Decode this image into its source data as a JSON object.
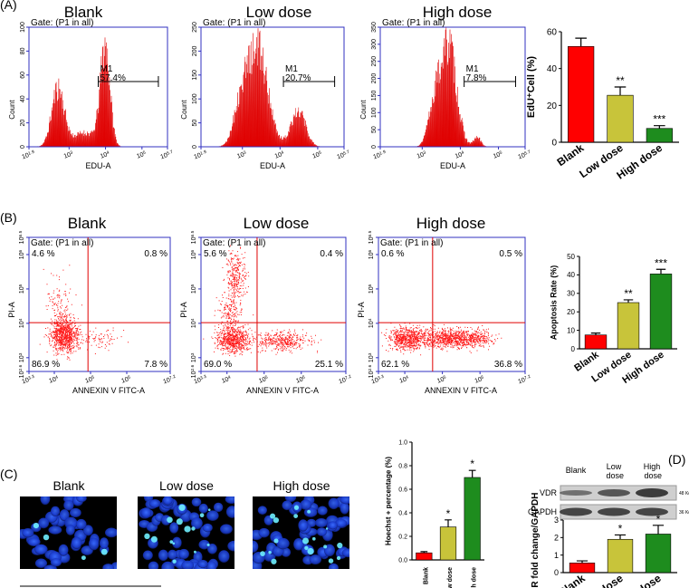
{
  "panel_labels": [
    "(A)",
    "(B)",
    "(C)",
    "(D)"
  ],
  "edu_histograms": [
    {
      "title": "Blank",
      "gate": "Gate: (P1 in all)",
      "ylabel": "Count",
      "xlabel": "EDU-A",
      "xscale": "log",
      "ylim": [
        0,
        100
      ],
      "yticks": [
        0,
        20,
        40,
        60,
        80,
        100
      ],
      "xlim": [
        79.43,
        501187
      ],
      "xticks": [
        {
          "value": 79.43,
          "label": "10^1.9"
        },
        {
          "value": 1000,
          "label": "10^3"
        },
        {
          "value": 10000,
          "label": "10^4"
        },
        {
          "value": 100000,
          "label": "10^5"
        },
        {
          "value": 501187,
          "label": "10^5.7"
        }
      ],
      "marker": "M1",
      "marker_range": [
        6310,
        281838
      ],
      "marker_percent": "57.4%"
    },
    {
      "title": "Low dose",
      "gate": "Gate: (P1 in all)",
      "ylabel": "Count",
      "xlabel": "EDU-A",
      "xscale": "log",
      "ylim": [
        0,
        250
      ],
      "yticks": [
        0,
        50,
        100,
        150,
        200,
        250
      ],
      "xlim": [
        79.43,
        501187
      ],
      "xticks": [
        {
          "value": 79.43,
          "label": "10^1.9"
        },
        {
          "value": 1000,
          "label": "10^3"
        },
        {
          "value": 10000,
          "label": "10^4"
        },
        {
          "value": 100000,
          "label": "10^5"
        },
        {
          "value": 501187,
          "label": "10^5.7"
        }
      ],
      "marker": "M1",
      "marker_range": [
        12300,
        281838
      ],
      "marker_percent": "20.7%"
    },
    {
      "title": "High dose",
      "gate": "Gate: (P1 in all)",
      "ylabel": "Count",
      "xlabel": "EDU-A",
      "xscale": "log",
      "ylim": [
        0,
        350
      ],
      "yticks": [
        0,
        50,
        100,
        150,
        200,
        250,
        300,
        350
      ],
      "xlim": [
        79.43,
        501187
      ],
      "xticks": [
        {
          "value": 79.43,
          "label": "10^1.9"
        },
        {
          "value": 1000,
          "label": "10^3"
        },
        {
          "value": 10000,
          "label": "10^4"
        },
        {
          "value": 100000,
          "label": "10^5"
        },
        {
          "value": 501187,
          "label": "10^5.7"
        }
      ],
      "marker": "M1",
      "marker_range": [
        12600,
        281838
      ],
      "marker_percent": "7.8%"
    }
  ],
  "apoptosis_scatter": [
    {
      "title": "Blank",
      "gate": "Gate: (P1 in all)",
      "xlabel": "ANNEXIN V FITC-A",
      "ylabel": "PI-A",
      "xscale": "log",
      "yscale": "log",
      "xlim": [
        1995,
        15848932
      ],
      "xticks": [
        {
          "value": 1995,
          "label": "10^3.3"
        },
        {
          "value": 10000,
          "label": "10^4"
        },
        {
          "value": 100000,
          "label": "10^5"
        },
        {
          "value": 1000000,
          "label": "10^6"
        },
        {
          "value": 15848932,
          "label": "10^7.2"
        }
      ],
      "ylim": [
        398,
        3162278
      ],
      "yticks": [
        {
          "value": 398,
          "label": "10^2.6"
        },
        {
          "value": 1000,
          "label": "10^3"
        },
        {
          "value": 10000,
          "label": "10^4"
        },
        {
          "value": 100000,
          "label": "10^5"
        },
        {
          "value": 1000000,
          "label": "10^6"
        },
        {
          "value": 3162278,
          "label": "10^6.5"
        }
      ],
      "quadrant_gate": {
        "x": 85000,
        "y": 10500
      },
      "quadrant_labels": [
        "4.6 %",
        "0.8 %",
        "86.9 %",
        "7.8 %"
      ]
    },
    {
      "title": "Low dose",
      "gate": "Gate: (P1 in all)",
      "xlabel": "ANNEXIN V FITC-A",
      "ylabel": "PI-A",
      "xscale": "log",
      "yscale": "log",
      "xlim": [
        1995,
        15848932
      ],
      "xticks": [
        {
          "value": 1995,
          "label": "10^3.3"
        },
        {
          "value": 10000,
          "label": "10^4"
        },
        {
          "value": 100000,
          "label": "10^5"
        },
        {
          "value": 1000000,
          "label": "10^6"
        },
        {
          "value": 15848932,
          "label": "10^7.2"
        }
      ],
      "ylim": [
        398,
        3162278
      ],
      "yticks": [
        {
          "value": 398,
          "label": "10^2.6"
        },
        {
          "value": 1000,
          "label": "10^3"
        },
        {
          "value": 10000,
          "label": "10^4"
        },
        {
          "value": 100000,
          "label": "10^5"
        },
        {
          "value": 1000000,
          "label": "10^6"
        },
        {
          "value": 3162278,
          "label": "10^6.5"
        }
      ],
      "quadrant_gate": {
        "x": 64600,
        "y": 10500
      },
      "quadrant_labels": [
        "5.6 %",
        "0.4 %",
        "69.0 %",
        "25.1 %"
      ]
    },
    {
      "title": "High dose",
      "gate": "Gate: (P1 in all)",
      "xlabel": "ANNEXIN V FITC-A",
      "ylabel": "PI-A",
      "xscale": "log",
      "yscale": "log",
      "xlim": [
        1995,
        15848932
      ],
      "xticks": [
        {
          "value": 1995,
          "label": "10^3.3"
        },
        {
          "value": 10000,
          "label": "10^4"
        },
        {
          "value": 100000,
          "label": "10^5"
        },
        {
          "value": 1000000,
          "label": "10^6"
        },
        {
          "value": 15848932,
          "label": "10^7.2"
        }
      ],
      "ylim": [
        398,
        3162278
      ],
      "yticks": [
        {
          "value": 398,
          "label": "10^2.6"
        },
        {
          "value": 1000,
          "label": "10^3"
        },
        {
          "value": 10000,
          "label": "10^4"
        },
        {
          "value": 100000,
          "label": "10^5"
        },
        {
          "value": 1000000,
          "label": "10^6"
        },
        {
          "value": 3162278,
          "label": "10^6.5"
        }
      ],
      "quadrant_gate": {
        "x": 55000,
        "y": 10500
      },
      "quadrant_labels": [
        "0.6 %",
        "0.5 %",
        "62.1 %",
        "36.8 %"
      ]
    }
  ],
  "hoechst_titles": [
    "Blank",
    "Low dose",
    "High dose"
  ],
  "western_blot": {
    "columns": [
      "Blank",
      "Low dose",
      "High dose"
    ],
    "bands": [
      {
        "name": "VDR",
        "size": "48 Kda"
      },
      {
        "name": "GAPDH",
        "size": "36 Kda"
      }
    ]
  },
  "chart_data": [
    {
      "type": "bar",
      "ylabel": "EdU⁺Cell (%)",
      "categories": [
        "Blank",
        "Low dose",
        "High dose"
      ],
      "values": [
        52,
        25.5,
        7.5
      ],
      "errors": [
        4.5,
        4.5,
        1.5
      ],
      "colors": [
        "#ff0000",
        "#c8c43a",
        "#1e8c1e"
      ],
      "ylim": [
        0,
        60
      ],
      "yticks": [
        0,
        20,
        40,
        60
      ],
      "annotations": [
        {
          "index": 1,
          "text": "**"
        },
        {
          "index": 2,
          "text": "***"
        }
      ]
    },
    {
      "type": "bar",
      "ylabel": "Apoptosis Rate (%)",
      "categories": [
        "Blank",
        "Low dose",
        "High dose"
      ],
      "values": [
        7.5,
        25,
        40.5
      ],
      "errors": [
        1,
        1.5,
        2.5
      ],
      "colors": [
        "#ff0000",
        "#c8c43a",
        "#1e8c1e"
      ],
      "ylim": [
        0,
        50
      ],
      "yticks": [
        0,
        10,
        20,
        30,
        40,
        50
      ],
      "annotations": [
        {
          "index": 1,
          "text": "**"
        },
        {
          "index": 2,
          "text": "***"
        }
      ]
    },
    {
      "type": "bar",
      "ylabel": "Hoechst + percentage (%)",
      "categories": [
        "Blank",
        "Low dose",
        "High dose"
      ],
      "values": [
        0.06,
        0.28,
        0.7
      ],
      "errors": [
        0.01,
        0.06,
        0.06
      ],
      "colors": [
        "#ff0000",
        "#c8c43a",
        "#1e8c1e"
      ],
      "ylim": [
        0,
        1
      ],
      "yticks": [
        {
          "value": 0,
          "label": "0.0"
        },
        0.2,
        0.4,
        0.6,
        0.8,
        {
          "value": 1,
          "label": "1.0"
        }
      ],
      "annotations": [
        {
          "index": 1,
          "text": "*"
        },
        {
          "index": 2,
          "text": "*"
        }
      ]
    },
    {
      "type": "bar",
      "ylabel": "VDR fold change/GAPDH",
      "categories": [
        "Blank",
        "Low dose",
        "High dose"
      ],
      "values": [
        0.55,
        1.9,
        2.2
      ],
      "errors": [
        0.12,
        0.25,
        0.5
      ],
      "colors": [
        "#ff0000",
        "#c8c43a",
        "#1e8c1e"
      ],
      "ylim": [
        0,
        3
      ],
      "yticks": [
        0,
        1,
        2,
        3
      ],
      "annotations": [
        {
          "index": 1,
          "text": "*"
        },
        {
          "index": 2,
          "text": "*"
        }
      ]
    }
  ]
}
